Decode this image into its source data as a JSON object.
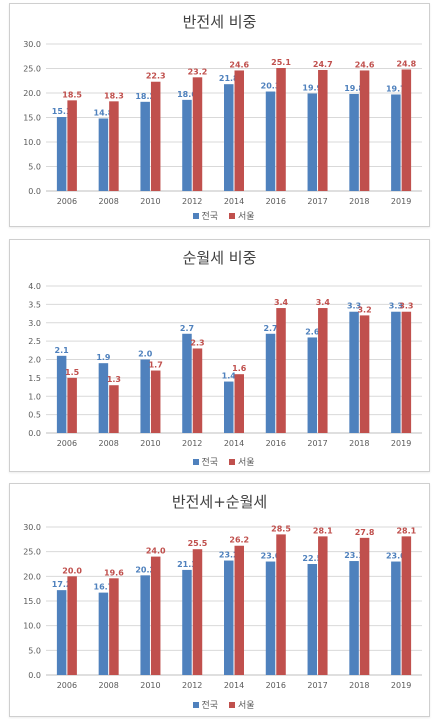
{
  "colors": {
    "national": "#4f81bd",
    "seoul": "#c0504d",
    "grid": "#d9d9d9",
    "axis": "#bfbfbf",
    "tick_text": "#595959"
  },
  "legend": {
    "national": "전국",
    "seoul": "서울"
  },
  "chart_data": [
    {
      "type": "bar",
      "title": "반전세 비중",
      "categories": [
        "2006",
        "2008",
        "2010",
        "2012",
        "2014",
        "2016",
        "2017",
        "2018",
        "2019"
      ],
      "yticks": [
        "0.0",
        "5.0",
        "10.0",
        "15.0",
        "20.0",
        "25.0",
        "30.0"
      ],
      "ylim": [
        0,
        30
      ],
      "grid": true,
      "legend_position": "bottom",
      "series": [
        {
          "name": "전국",
          "values": [
            15.1,
            14.8,
            18.2,
            18.6,
            21.8,
            20.3,
            19.9,
            19.8,
            19.7
          ],
          "labels": [
            "15.1",
            "14.8",
            "18.2",
            "18.6",
            "21.8",
            "20.3",
            "19.9",
            "19.8",
            "19.7"
          ]
        },
        {
          "name": "서울",
          "values": [
            18.5,
            18.3,
            22.3,
            23.2,
            24.6,
            25.1,
            24.7,
            24.6,
            24.8
          ],
          "labels": [
            "18.5",
            "18.3",
            "22.3",
            "23.2",
            "24.6",
            "25.1",
            "24.7",
            "24.6",
            "24.8"
          ]
        }
      ]
    },
    {
      "type": "bar",
      "title": "순월세 비중",
      "categories": [
        "2006",
        "2008",
        "2010",
        "2012",
        "2014",
        "2016",
        "2017",
        "2018",
        "2019"
      ],
      "yticks": [
        "0.0",
        "0.5",
        "1.0",
        "1.5",
        "2.0",
        "2.5",
        "3.0",
        "3.5",
        "4.0"
      ],
      "ylim": [
        0,
        4
      ],
      "grid": true,
      "legend_position": "bottom",
      "series": [
        {
          "name": "전국",
          "values": [
            2.1,
            1.9,
            2.0,
            2.7,
            1.4,
            2.7,
            2.6,
            3.3,
            3.3
          ],
          "labels": [
            "2.1",
            "1.9",
            "2.0",
            "2.7",
            "1.4",
            "2.7",
            "2.6",
            "3.3",
            "3.3"
          ]
        },
        {
          "name": "서울",
          "values": [
            1.5,
            1.3,
            1.7,
            2.3,
            1.6,
            3.4,
            3.4,
            3.2,
            3.3
          ],
          "labels": [
            "1.5",
            "1.3",
            "1.7",
            "2.3",
            "1.6",
            "3.4",
            "3.4",
            "3.2",
            "3.3"
          ]
        }
      ]
    },
    {
      "type": "bar",
      "title": "반전세+순월세",
      "categories": [
        "2006",
        "2008",
        "2010",
        "2012",
        "2014",
        "2016",
        "2017",
        "2018",
        "2019"
      ],
      "yticks": [
        "0.0",
        "5.0",
        "10.0",
        "15.0",
        "20.0",
        "25.0",
        "30.0"
      ],
      "ylim": [
        0,
        30
      ],
      "grid": true,
      "legend_position": "bottom",
      "series": [
        {
          "name": "전국",
          "values": [
            17.2,
            16.7,
            20.2,
            21.3,
            23.2,
            23.0,
            22.5,
            23.1,
            23.0
          ],
          "labels": [
            "17.2",
            "16.7",
            "20.2",
            "21.3",
            "23.2",
            "23.0",
            "22.5",
            "23.1",
            "23.0"
          ]
        },
        {
          "name": "서울",
          "values": [
            20.0,
            19.6,
            24.0,
            25.5,
            26.2,
            28.5,
            28.1,
            27.8,
            28.1
          ],
          "labels": [
            "20.0",
            "19.6",
            "24.0",
            "25.5",
            "26.2",
            "28.5",
            "28.1",
            "27.8",
            "28.1"
          ]
        }
      ]
    }
  ]
}
